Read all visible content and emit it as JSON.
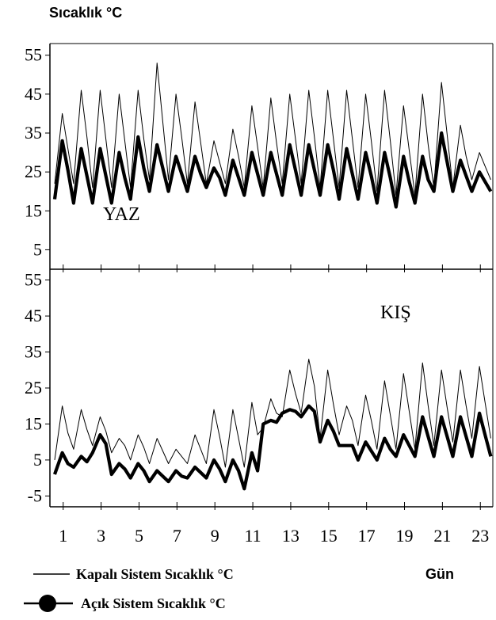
{
  "chart_data": {
    "type": "line",
    "ylabel": "Sıcaklık °C",
    "xlabel": "Gün",
    "x_ticks": [
      "1",
      "3",
      "5",
      "7",
      "9",
      "11",
      "13",
      "15",
      "17",
      "19",
      "21",
      "23"
    ],
    "xlim": [
      0.3,
      23.7
    ],
    "legend": [
      "Kapalı  Sistem   Sıcaklık °C",
      "Açık Sistem Sıcaklık °C"
    ],
    "legend_placement": "bottom-left",
    "panels": [
      {
        "label": "YAZ",
        "ylim": [
          0,
          58
        ],
        "y_ticks": [
          "55",
          "45",
          "35",
          "25",
          "15",
          "5"
        ],
        "series": [
          {
            "name": "Kapalı  Sistem   Sıcaklık °C",
            "line_style": "thin",
            "daily_max": [
              40,
              46,
              46,
              45,
              46,
              53,
              45,
              43,
              33,
              36,
              42,
              44,
              45,
              46,
              46,
              46,
              45,
              46,
              42,
              45,
              48,
              37,
              30
            ],
            "daily_min": [
              22,
              22,
              21,
              21,
              21,
              23,
              23,
              22,
              22,
              22,
              21,
              21,
              22,
              22,
              21,
              21,
              21,
              20,
              19,
              19,
              21,
              21,
              23
            ]
          },
          {
            "name": "Açık Sistem Sıcaklık °C",
            "line_style": "thick",
            "daily_max": [
              33,
              31,
              31,
              30,
              34,
              32,
              29,
              29,
              26,
              28,
              30,
              30,
              32,
              32,
              32,
              31,
              30,
              30,
              29,
              29,
              35,
              28,
              25
            ],
            "daily_min": [
              18,
              17,
              17,
              17,
              18,
              20,
              20,
              20,
              21,
              19,
              19,
              19,
              19,
              19,
              19,
              18,
              18,
              17,
              16,
              17,
              20,
              20,
              20
            ]
          }
        ]
      },
      {
        "label": "KIŞ",
        "ylim": [
          -8,
          58
        ],
        "y_ticks": [
          "55",
          "45",
          "35",
          "25",
          "15",
          "5",
          "-5"
        ],
        "series": [
          {
            "name": "Kapalı  Sistem   Sıcaklık °C",
            "line_style": "thin",
            "daily_max": [
              20,
              19,
              17,
              11,
              12,
              11,
              8,
              12,
              19,
              19,
              21,
              22,
              30,
              33,
              30,
              20,
              23,
              27,
              29,
              32,
              30,
              30,
              31
            ],
            "daily_min": [
              5,
              8,
              9,
              7,
              5,
              4,
              4,
              4,
              4,
              3,
              3,
              14,
              17,
              18,
              11,
              12,
              9,
              8,
              8,
              8,
              9,
              10,
              11
            ]
          },
          {
            "name": "Açık Sistem Sıcaklık °C",
            "line_style": "thick",
            "daily_max": [
              7,
              6,
              12,
              4,
              4,
              2,
              2,
              3,
              5,
              5,
              7,
              16,
              19,
              20,
              16,
              9,
              10,
              11,
              12,
              17,
              17,
              17,
              18
            ],
            "daily_min": [
              1,
              3,
              7,
              1,
              0,
              -1,
              -1,
              0,
              0,
              -1,
              -3,
              15,
              18,
              17,
              10,
              9,
              5,
              5,
              6,
              6,
              6,
              6,
              6
            ]
          }
        ]
      }
    ]
  }
}
